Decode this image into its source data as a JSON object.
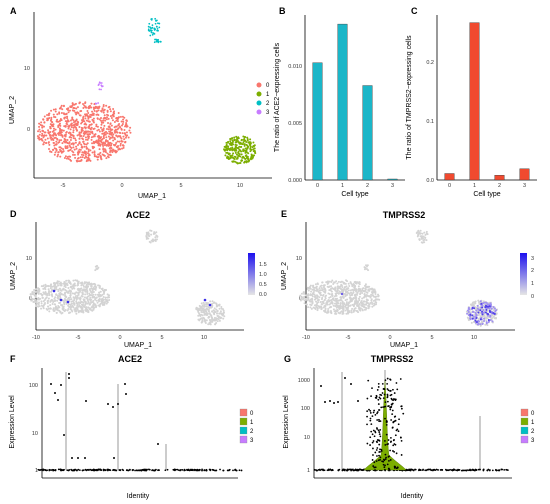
{
  "panels": {
    "A": {
      "letter": "A",
      "xlabel": "UMAP_1",
      "ylabel": "UMAP_2",
      "xticks": [
        "-5",
        "0",
        "5",
        "10"
      ],
      "yticks": [
        "0",
        "10"
      ],
      "legend": [
        {
          "label": "0",
          "color": "#F8766D"
        },
        {
          "label": "1",
          "color": "#7CAE00"
        },
        {
          "label": "2",
          "color": "#00BFC4"
        },
        {
          "label": "3",
          "color": "#C77CFF"
        }
      ]
    },
    "B": {
      "letter": "B"
    },
    "C": {
      "letter": "C"
    },
    "D": {
      "letter": "D",
      "title": "ACE2",
      "xlabel": "UMAP_1",
      "ylabel": "UMAP_2",
      "xticks": [
        "-10",
        "-5",
        "0",
        "5",
        "10"
      ],
      "yticks": [
        "0",
        "10"
      ],
      "colorbar": [
        "1.5",
        "1.0",
        "0.5",
        "0.0"
      ]
    },
    "E": {
      "letter": "E",
      "title": "TMPRSS2",
      "xlabel": "UMAP_1",
      "ylabel": "UMAP_2",
      "xticks": [
        "-10",
        "-5",
        "0",
        "5",
        "10"
      ],
      "yticks": [
        "0",
        "10"
      ],
      "colorbar": [
        "3",
        "2",
        "1",
        "0"
      ]
    },
    "F": {
      "letter": "F",
      "title": "ACE2",
      "xlabel": "Identity",
      "ylabel": "Expression Level",
      "xticks": [
        "0",
        "1",
        "2",
        "3"
      ],
      "yticks": [
        "100",
        "10",
        "1"
      ]
    },
    "G": {
      "letter": "G",
      "title": "TMPRSS2",
      "xlabel": "Identity",
      "ylabel": "Expression Level",
      "xticks": [
        "0",
        "1",
        "2",
        "3"
      ],
      "yticks": [
        "1000",
        "100",
        "10",
        "1"
      ]
    },
    "violin_legend": [
      {
        "label": "0",
        "color": "#F8766D"
      },
      {
        "label": "1",
        "color": "#7CAE00"
      },
      {
        "label": "2",
        "color": "#00BFC4"
      },
      {
        "label": "3",
        "color": "#C77CFF"
      }
    ]
  },
  "chart_data": [
    {
      "type": "bar",
      "panel": "B",
      "ylabel": "The ratio of ACE2−expressing cells",
      "xlabel": "Cell type",
      "categories": [
        "0",
        "1",
        "2",
        "3"
      ],
      "yticks": [
        "0.000",
        "0.005",
        "0.010"
      ],
      "values": [
        0.0103,
        0.0137,
        0.0083,
        0.0
      ],
      "ylim": [
        0,
        0.0145
      ],
      "color": "#1BB6C8"
    },
    {
      "type": "bar",
      "panel": "C",
      "ylabel": "The ratio of TMPRSS2−expressing cells",
      "xlabel": "Cell type",
      "categories": [
        "0",
        "1",
        "2",
        "3"
      ],
      "yticks": [
        "0.0",
        "0.1",
        "0.2"
      ],
      "values": [
        0.011,
        0.267,
        0.008,
        0.019
      ],
      "ylim": [
        0,
        0.28
      ],
      "color": "#F04A2F"
    }
  ]
}
